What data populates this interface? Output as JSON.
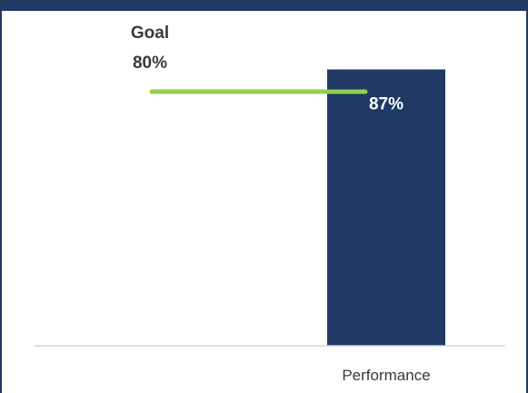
{
  "chart_data": {
    "type": "bar",
    "categories": [
      "Performance"
    ],
    "values": [
      87
    ],
    "value_labels": [
      "87%"
    ],
    "goal": {
      "title": "Goal",
      "value": 80,
      "label": "80%"
    },
    "ylim": [
      0,
      100
    ],
    "grid": false,
    "colors": {
      "bar": "#1f3864",
      "goal_line": "#92d050",
      "frame": "#1f3864",
      "axis": "#d9d9d9",
      "bar_label": "#ffffff",
      "text": "#3a3a3a"
    }
  }
}
